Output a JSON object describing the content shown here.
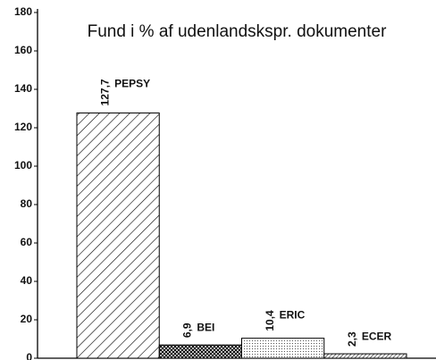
{
  "chart_data": {
    "type": "bar",
    "title": "Fund i % af udenlandskspr. dokumenter",
    "categories": [
      "PEPSY",
      "BEI",
      "ERIC",
      "ECER"
    ],
    "values": [
      127.7,
      6.9,
      10.4,
      2.3
    ],
    "value_labels": [
      "127,7",
      "6,9",
      "10,4",
      "2,3"
    ],
    "ylim": [
      0,
      180
    ],
    "yticks": [
      0,
      20,
      40,
      60,
      80,
      100,
      120,
      140,
      160,
      180
    ],
    "grid": false
  }
}
